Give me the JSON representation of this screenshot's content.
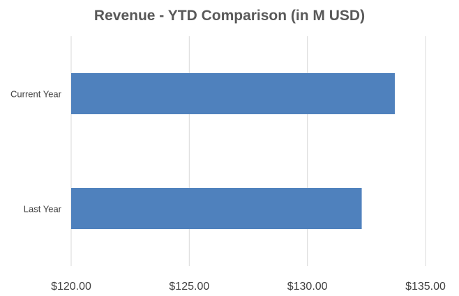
{
  "chart_data": {
    "type": "bar",
    "orientation": "horizontal",
    "title": "Revenue - YTD Comparison (in M USD)",
    "categories": [
      "Current Year",
      "Last Year"
    ],
    "values": [
      133.7,
      132.3
    ],
    "xlim": [
      120,
      135
    ],
    "x_ticks": [
      120,
      125,
      130,
      135
    ],
    "x_tick_labels": [
      "$120.00",
      "$125.00",
      "$130.00",
      "$135.00"
    ],
    "grid": true,
    "legend": "none",
    "bar_color": "#4f81bd",
    "grid_color": "#d9d9d9"
  }
}
